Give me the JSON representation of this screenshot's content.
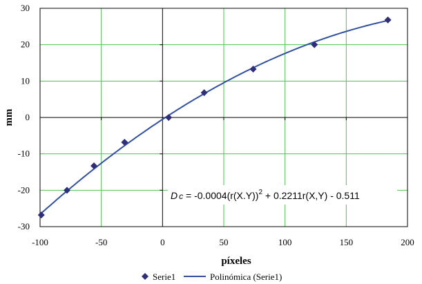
{
  "chart_data": {
    "type": "scatter",
    "xlabel": "píxeles",
    "ylabel": "mm",
    "xlim": [
      -100,
      200
    ],
    "ylim": [
      -30,
      30
    ],
    "xticks": [
      -100,
      -50,
      0,
      50,
      100,
      150,
      200
    ],
    "yticks": [
      -30,
      -20,
      -10,
      0,
      10,
      20,
      30
    ],
    "grid": true,
    "legend_position": "bottom",
    "colors": {
      "points": "#2e2e7a",
      "trend": "#2f4f9f",
      "grid": "#4cc44c",
      "axis": "#000000"
    },
    "series": [
      {
        "name": "Serie1",
        "marker": "diamond",
        "x": [
          -99,
          -78,
          -56,
          -31,
          5,
          34,
          74,
          124,
          184
        ],
        "y": [
          -26.8,
          -20,
          -13.3,
          -6.8,
          0,
          6.8,
          13.3,
          20,
          26.8
        ]
      },
      {
        "name": "Polinómica (Serie1)",
        "kind": "trendline",
        "coefficients": {
          "a": -0.0004,
          "b": 0.2211,
          "c": -0.511
        },
        "x_range": [
          -100,
          184
        ]
      }
    ],
    "annotation": {
      "prefix": "D",
      "prefix_sub": "c",
      "part1": " = -0.0004(r(X.Y))",
      "sup": "2",
      "part2": " + 0.2211r(X,Y) - 0.511"
    }
  }
}
